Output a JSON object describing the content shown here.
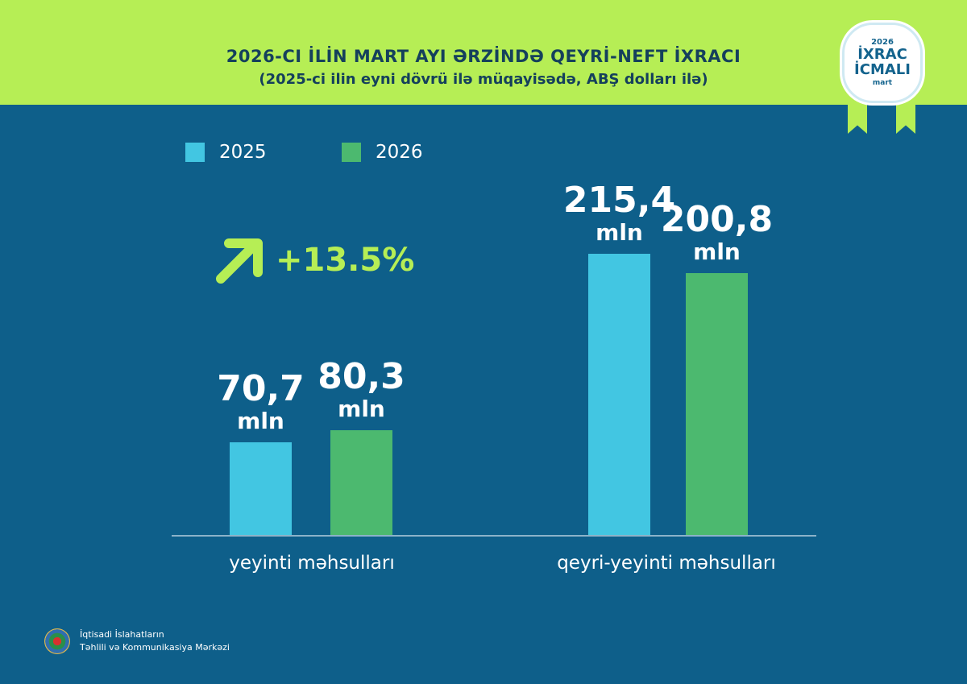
{
  "header": {
    "title": "2026-CI İLİN MART AYI ƏRZİNDƏ QEYRİ-NEFT İXRACI",
    "subtitle": "(2025-ci ilin eyni dövrü ilə müqayisədə, ABŞ dolları ilə)"
  },
  "badge": {
    "year": "2026",
    "line1": "İXRAC",
    "line2": "İCMALI",
    "month": "mart"
  },
  "colors": {
    "top_band": "#b6ee55",
    "background": "#0e5f8a",
    "series_2025": "#42c6e2",
    "series_2026": "#4cb96f"
  },
  "growth": {
    "icon": "arrow-up-right-icon",
    "text": "+13.5%"
  },
  "chart_data": {
    "type": "bar",
    "categories": [
      "yeyinti məhsulları",
      "qeyri-yeyinti məhsulları"
    ],
    "series": [
      {
        "name": "2025",
        "values": [
          70.7,
          215.4
        ],
        "labels": [
          "70,7",
          "215,4"
        ]
      },
      {
        "name": "2026",
        "values": [
          80.3,
          200.8
        ],
        "labels": [
          "80,3",
          "200,8"
        ]
      }
    ],
    "unit": "mln",
    "legend": "top-left",
    "grid": false
  },
  "footer": {
    "line1": "İqtisadi İslahatların",
    "line2": "Təhlili və Kommunikasiya Mərkəzi"
  }
}
